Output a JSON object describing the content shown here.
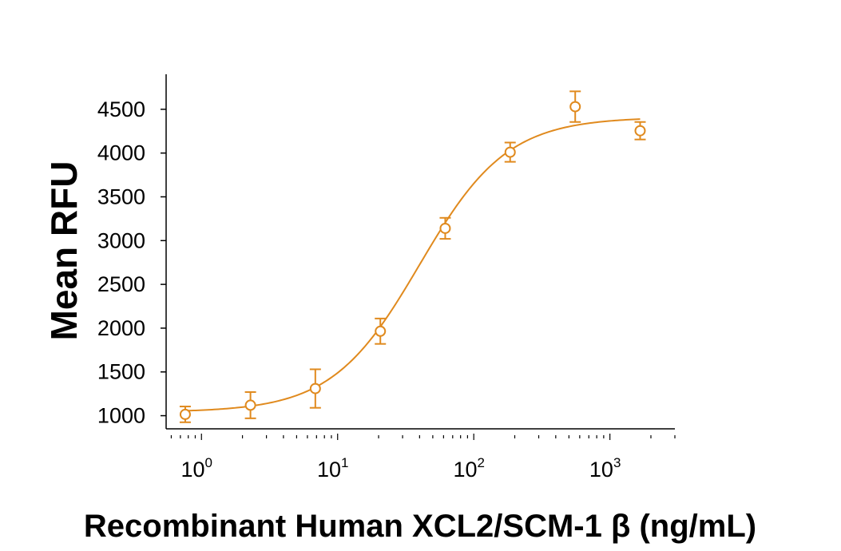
{
  "chart_data": {
    "type": "scatter",
    "xlabel": "Recombinant Human XCL2/SCM-1 β (ng/mL)",
    "ylabel": "Mean RFU",
    "x_scale": "log",
    "xlim": [
      0.55,
      3000
    ],
    "ylim": [
      850,
      4900
    ],
    "y_ticks": [
      1000,
      1500,
      2000,
      2500,
      3000,
      3500,
      4000,
      4500
    ],
    "x_ticks": [
      {
        "value": 1,
        "base": "10",
        "exp": "0"
      },
      {
        "value": 10,
        "base": "10",
        "exp": "1"
      },
      {
        "value": 100,
        "base": "10",
        "exp": "2"
      },
      {
        "value": 1000,
        "base": "10",
        "exp": "3"
      }
    ],
    "grid": false,
    "color": "#E08A1E",
    "series": [
      {
        "x": [
          0.76,
          2.29,
          6.86,
          20.6,
          61.7,
          185,
          556,
          1667
        ],
        "y": [
          1015,
          1120,
          1310,
          1965,
          3140,
          4010,
          4530,
          4255
        ],
        "err": [
          90,
          150,
          220,
          145,
          120,
          110,
          175,
          100
        ],
        "fit": {
          "bottom": 1040,
          "top": 4410,
          "ec50": 40,
          "hill": 1.35
        }
      }
    ]
  }
}
